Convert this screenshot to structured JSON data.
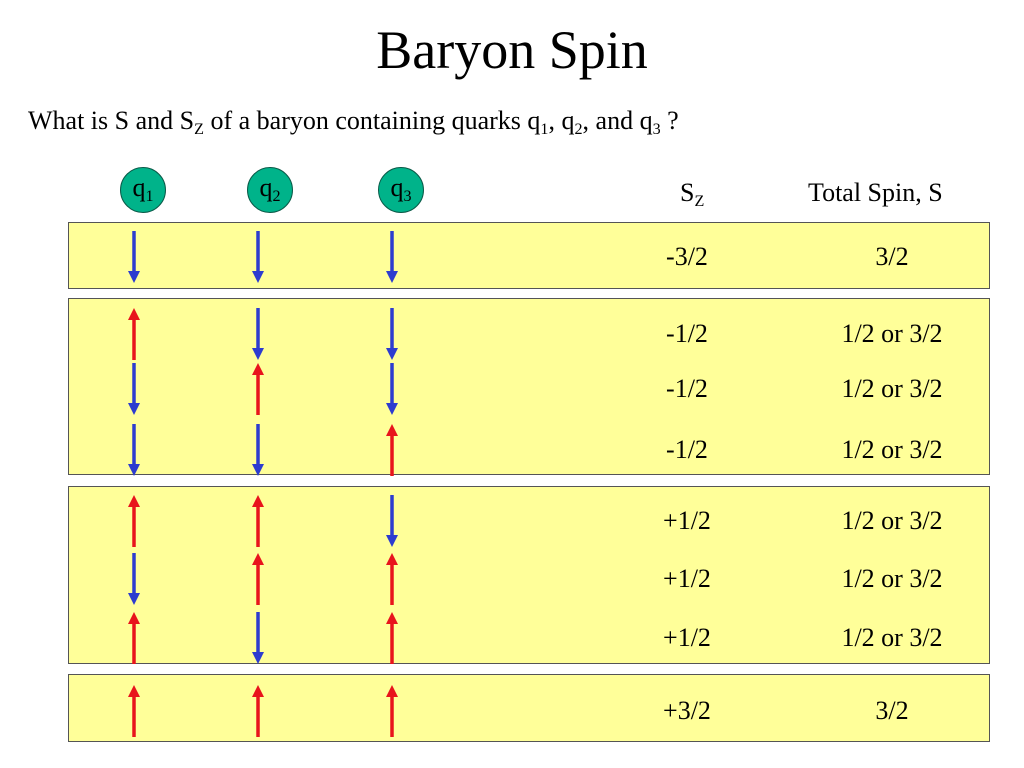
{
  "slide": {
    "title": "Baryon Spin",
    "question": {
      "prefix": "What is S and S",
      "sz_sub": "Z",
      "mid": " of a baryon containing quarks q",
      "q1_sub": "1",
      "sep1": ", q",
      "q2_sub": "2",
      "sep2": ", and q",
      "q3_sub": "3",
      "suffix": " ?"
    }
  },
  "quarks": [
    {
      "label": "q",
      "sub": "1"
    },
    {
      "label": "q",
      "sub": "2"
    },
    {
      "label": "q",
      "sub": "3"
    }
  ],
  "headers": {
    "sz": "S",
    "sz_sub": "Z",
    "total": "Total Spin, S"
  },
  "colors": {
    "spin_up": "#e8141c",
    "spin_down": "#2d3ccf",
    "panel": "#ffff99",
    "quark_circle": "#00b38a"
  },
  "groups": [
    {
      "rows": [
        {
          "spins": [
            "down",
            "down",
            "down"
          ],
          "sz": "-3/2",
          "s": "3/2"
        }
      ]
    },
    {
      "rows": [
        {
          "spins": [
            "up",
            "down",
            "down"
          ],
          "sz": "-1/2",
          "s": "1/2 or 3/2"
        },
        {
          "spins": [
            "down",
            "up",
            "down"
          ],
          "sz": "-1/2",
          "s": "1/2 or 3/2"
        },
        {
          "spins": [
            "down",
            "down",
            "up"
          ],
          "sz": "-1/2",
          "s": "1/2 or 3/2"
        }
      ]
    },
    {
      "rows": [
        {
          "spins": [
            "up",
            "up",
            "down"
          ],
          "sz": "+1/2",
          "s": "1/2 or 3/2"
        },
        {
          "spins": [
            "down",
            "up",
            "up"
          ],
          "sz": "+1/2",
          "s": "1/2 or 3/2"
        },
        {
          "spins": [
            "up",
            "down",
            "up"
          ],
          "sz": "+1/2",
          "s": "1/2 or 3/2"
        }
      ]
    },
    {
      "rows": [
        {
          "spins": [
            "up",
            "up",
            "up"
          ],
          "sz": "+3/2",
          "s": "3/2"
        }
      ]
    }
  ]
}
